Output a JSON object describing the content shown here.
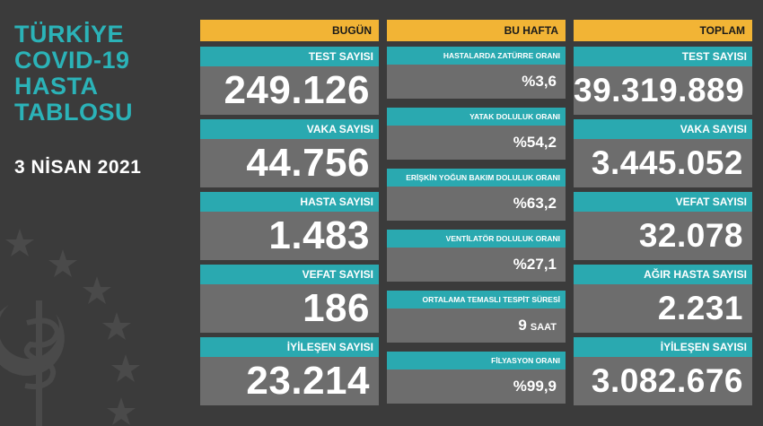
{
  "title": [
    "TÜRKİYE",
    "COVID-19",
    "HASTA",
    "TABLOSU"
  ],
  "date": "3 NİSAN 2021",
  "colors": {
    "background": "#3b3b3b",
    "teal": "#2aa9b0",
    "yellow": "#f2b435",
    "value_bg": "#6d6d6d"
  },
  "today": {
    "header": "BUGÜN",
    "items": [
      {
        "label": "TEST SAYISI",
        "value": "249.126"
      },
      {
        "label": "VAKA SAYISI",
        "value": "44.756"
      },
      {
        "label": "HASTA SAYISI",
        "value": "1.483"
      },
      {
        "label": "VEFAT SAYISI",
        "value": "186"
      },
      {
        "label": "İYİLEŞEN SAYISI",
        "value": "23.214"
      }
    ]
  },
  "week": {
    "header": "BU HAFTA",
    "items": [
      {
        "label": "HASTALARDA ZATÜRRE ORANI",
        "value": "%3,6",
        "unit": ""
      },
      {
        "label": "YATAK DOLULUK ORANI",
        "value": "%54,2",
        "unit": ""
      },
      {
        "label": "ERİŞKİN YOĞUN BAKIM DOLULUK ORANI",
        "value": "%63,2",
        "unit": ""
      },
      {
        "label": "VENTİLATÖR DOLULUK ORANI",
        "value": "%27,1",
        "unit": ""
      },
      {
        "label": "ORTALAMA TEMASLI TESPİT SÜRESİ",
        "value": "9",
        "unit": "SAAT"
      },
      {
        "label": "FİLYASYON ORANI",
        "value": "%99,9",
        "unit": ""
      }
    ]
  },
  "total": {
    "header": "TOPLAM",
    "items": [
      {
        "label": "TEST SAYISI",
        "value": "39.319.889"
      },
      {
        "label": "VAKA SAYISI",
        "value": "3.445.052"
      },
      {
        "label": "VEFAT SAYISI",
        "value": "32.078"
      },
      {
        "label": "AĞIR HASTA SAYISI",
        "value": "2.231"
      },
      {
        "label": "İYİLEŞEN SAYISI",
        "value": "3.082.676"
      }
    ]
  }
}
